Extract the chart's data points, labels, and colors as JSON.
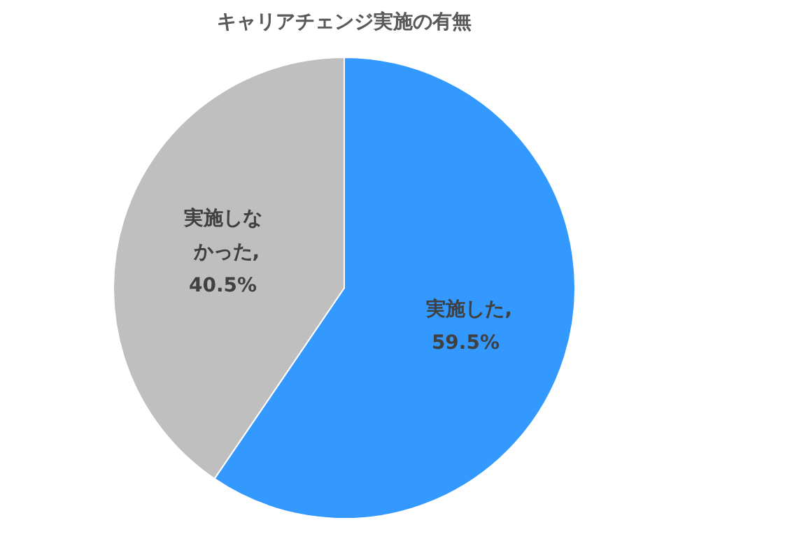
{
  "chart_data": {
    "type": "pie",
    "title": "キャリアチェンジ実施の有無",
    "categories": [
      "実施した",
      "実施しなかった"
    ],
    "values": [
      59.5,
      40.5
    ],
    "colors": [
      "#3399ff",
      "#bfbfbf"
    ],
    "value_labels": [
      ", 59.5%",
      ", 40.5%"
    ]
  }
}
